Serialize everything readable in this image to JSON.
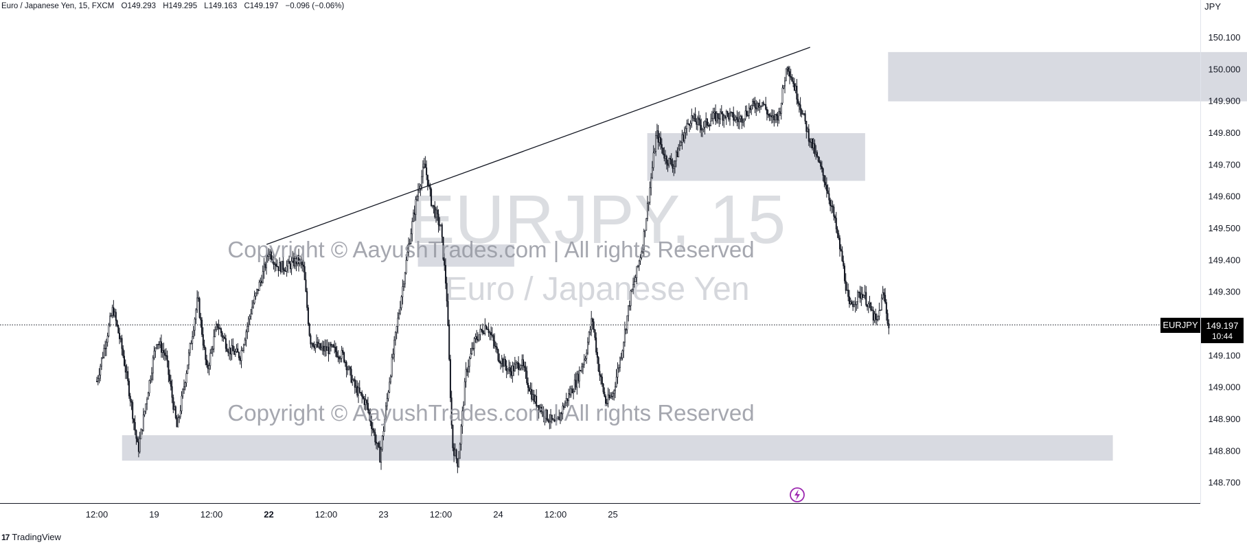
{
  "header": {
    "symbol_desc": "Euro / Japanese Yen, 15, FXCM",
    "open": "O149.293",
    "high": "H149.295",
    "low": "L149.163",
    "close": "C149.197",
    "change": "−0.096 (−0.06%)"
  },
  "currency": "JPY",
  "watermark": {
    "symbol": "EURJPY, 15",
    "name": "Euro / Japanese Yen",
    "copyright_top": "Copyright © AayushTrades.com | All rights Reserved",
    "copyright_bottom": "Copyright © AayushTrades.com | All rights Reserved"
  },
  "price_label": {
    "ticker": "EURJPY",
    "price": "149.197",
    "countdown": "10:44"
  },
  "brand": {
    "name": "TradingView"
  },
  "colors": {
    "candle": "#131722",
    "zone": "#d1d4dc",
    "price_badge_bg": "#000000",
    "event_icon": "#9c27b0"
  },
  "chart_data": {
    "type": "candlestick",
    "symbol": "EURJPY",
    "interval": "15",
    "ylim": [
      148.65,
      150.15
    ],
    "y_ticks": [
      "150.100",
      "150.000",
      "149.900",
      "149.800",
      "149.700",
      "149.600",
      "149.500",
      "149.400",
      "149.300",
      "149.200",
      "149.100",
      "149.000",
      "148.900",
      "148.800",
      "148.700"
    ],
    "x_ticks": [
      {
        "label": "12:00",
        "bold": false
      },
      {
        "label": "19",
        "bold": false
      },
      {
        "label": "12:00",
        "bold": false
      },
      {
        "label": "22",
        "bold": true
      },
      {
        "label": "12:00",
        "bold": false
      },
      {
        "label": "23",
        "bold": false
      },
      {
        "label": "12:00",
        "bold": false
      },
      {
        "label": "24",
        "bold": false
      },
      {
        "label": "12:00",
        "bold": false
      },
      {
        "label": "25",
        "bold": false
      }
    ],
    "last_price": 149.197,
    "zones": [
      {
        "from_day": 2.8,
        "to_day": 3.64,
        "low": 149.38,
        "high": 149.45
      },
      {
        "from_day": 4.8,
        "to_day": 6.7,
        "low": 149.65,
        "high": 149.8
      },
      {
        "from_day": 6.9,
        "to_day": 10.85,
        "low": 149.9,
        "high": 150.055
      },
      {
        "from_day": 0.22,
        "to_day": 8.86,
        "low": 148.77,
        "high": 148.85
      }
    ],
    "trendline": [
      {
        "day": 1.48,
        "price": 149.45
      },
      {
        "day": 6.22,
        "price": 150.07
      }
    ],
    "path": [
      [
        0.0,
        149.02
      ],
      [
        0.08,
        149.15
      ],
      [
        0.14,
        149.25
      ],
      [
        0.22,
        149.12
      ],
      [
        0.3,
        148.95
      ],
      [
        0.36,
        148.8
      ],
      [
        0.45,
        149.0
      ],
      [
        0.52,
        149.15
      ],
      [
        0.6,
        149.1
      ],
      [
        0.7,
        148.87
      ],
      [
        0.78,
        149.05
      ],
      [
        0.88,
        149.28
      ],
      [
        0.96,
        149.05
      ],
      [
        1.05,
        149.2
      ],
      [
        1.15,
        149.12
      ],
      [
        1.25,
        149.1
      ],
      [
        1.35,
        149.25
      ],
      [
        1.45,
        149.36
      ],
      [
        1.5,
        149.43
      ],
      [
        1.58,
        149.38
      ],
      [
        1.66,
        149.38
      ],
      [
        1.75,
        149.4
      ],
      [
        1.8,
        149.38
      ],
      [
        1.86,
        149.15
      ],
      [
        1.95,
        149.12
      ],
      [
        2.05,
        149.12
      ],
      [
        2.15,
        149.1
      ],
      [
        2.25,
        149.0
      ],
      [
        2.35,
        148.95
      ],
      [
        2.42,
        148.85
      ],
      [
        2.47,
        148.78
      ],
      [
        2.55,
        149.02
      ],
      [
        2.62,
        149.2
      ],
      [
        2.72,
        149.45
      ],
      [
        2.8,
        149.62
      ],
      [
        2.86,
        149.7
      ],
      [
        2.92,
        149.58
      ],
      [
        3.0,
        149.5
      ],
      [
        3.05,
        149.3
      ],
      [
        3.1,
        148.82
      ],
      [
        3.15,
        148.76
      ],
      [
        3.22,
        149.05
      ],
      [
        3.3,
        149.15
      ],
      [
        3.4,
        149.2
      ],
      [
        3.5,
        149.1
      ],
      [
        3.6,
        149.05
      ],
      [
        3.7,
        149.08
      ],
      [
        3.8,
        148.97
      ],
      [
        3.9,
        148.92
      ],
      [
        4.0,
        148.88
      ],
      [
        4.08,
        148.95
      ],
      [
        4.18,
        149.02
      ],
      [
        4.26,
        149.1
      ],
      [
        4.32,
        149.22
      ],
      [
        4.38,
        149.05
      ],
      [
        4.44,
        148.95
      ],
      [
        4.5,
        148.98
      ],
      [
        4.58,
        149.12
      ],
      [
        4.65,
        149.28
      ],
      [
        4.7,
        149.35
      ],
      [
        4.76,
        149.45
      ],
      [
        4.82,
        149.62
      ],
      [
        4.88,
        149.8
      ],
      [
        4.96,
        149.72
      ],
      [
        5.03,
        149.7
      ],
      [
        5.1,
        149.78
      ],
      [
        5.18,
        149.85
      ],
      [
        5.28,
        149.82
      ],
      [
        5.38,
        149.85
      ],
      [
        5.48,
        149.86
      ],
      [
        5.6,
        149.84
      ],
      [
        5.7,
        149.88
      ],
      [
        5.8,
        149.9
      ],
      [
        5.88,
        149.84
      ],
      [
        5.95,
        149.86
      ],
      [
        6.02,
        150.02
      ],
      [
        6.08,
        149.95
      ],
      [
        6.14,
        149.88
      ],
      [
        6.2,
        149.8
      ],
      [
        6.28,
        149.72
      ],
      [
        6.35,
        149.65
      ],
      [
        6.42,
        149.55
      ],
      [
        6.5,
        149.4
      ],
      [
        6.56,
        149.25
      ],
      [
        6.62,
        149.28
      ],
      [
        6.68,
        149.3
      ],
      [
        6.74,
        149.25
      ],
      [
        6.8,
        149.2
      ],
      [
        6.86,
        149.3
      ],
      [
        6.91,
        149.18
      ]
    ]
  }
}
